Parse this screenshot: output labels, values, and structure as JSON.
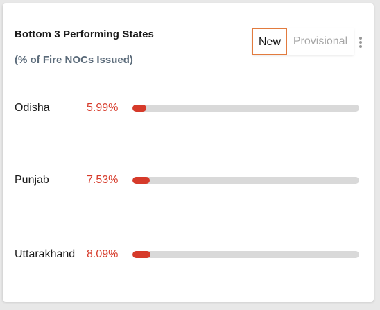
{
  "card": {
    "title": "Bottom 3 Performing States",
    "subtitle": "(% of Fire NOCs Issued)"
  },
  "toggle": {
    "options": [
      "New",
      "Provisional"
    ],
    "selected": "New"
  },
  "menu": {
    "icon": "kebab-menu-icon"
  },
  "colors": {
    "accent": "#d63a2a",
    "track": "#d9d9d9",
    "active_border": "#e27b3e"
  },
  "states": [
    {
      "name": "Odisha",
      "value_label": "5.99%",
      "value": 5.99
    },
    {
      "name": "Punjab",
      "value_label": "7.53%",
      "value": 7.53
    },
    {
      "name": "Uttarakhand",
      "value_label": "8.09%",
      "value": 8.09
    }
  ]
}
